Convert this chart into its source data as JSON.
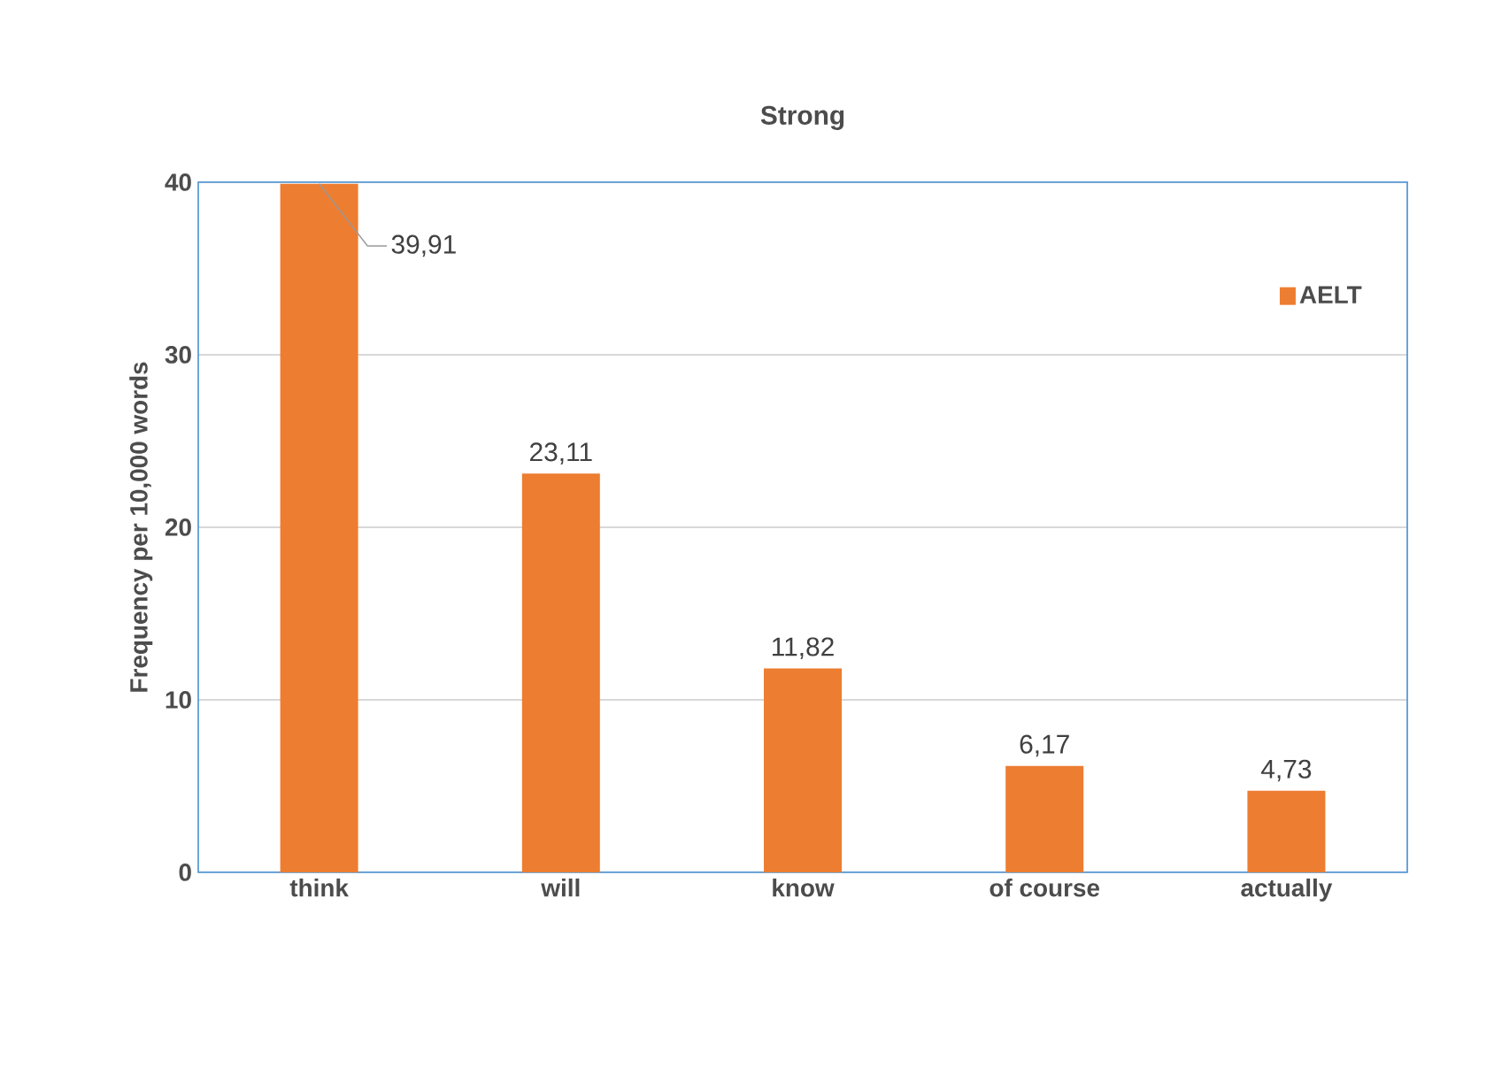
{
  "chart_data": {
    "type": "bar",
    "title": "Strong",
    "ylabel": "Frequency per 10,000 words",
    "categories": [
      "think",
      "will",
      "know",
      "of course",
      "actually"
    ],
    "series": [
      {
        "name": "AELT",
        "color": "#ed7d31",
        "values": [
          39.91,
          23.11,
          11.82,
          6.17,
          4.73
        ]
      }
    ],
    "value_labels": [
      "39,91",
      "23,11",
      "11,82",
      "6,17",
      "4,73"
    ],
    "ylim": [
      0,
      40
    ],
    "yticks": [
      0,
      10,
      20,
      30,
      40
    ],
    "grid": "y",
    "legend": "top right"
  }
}
